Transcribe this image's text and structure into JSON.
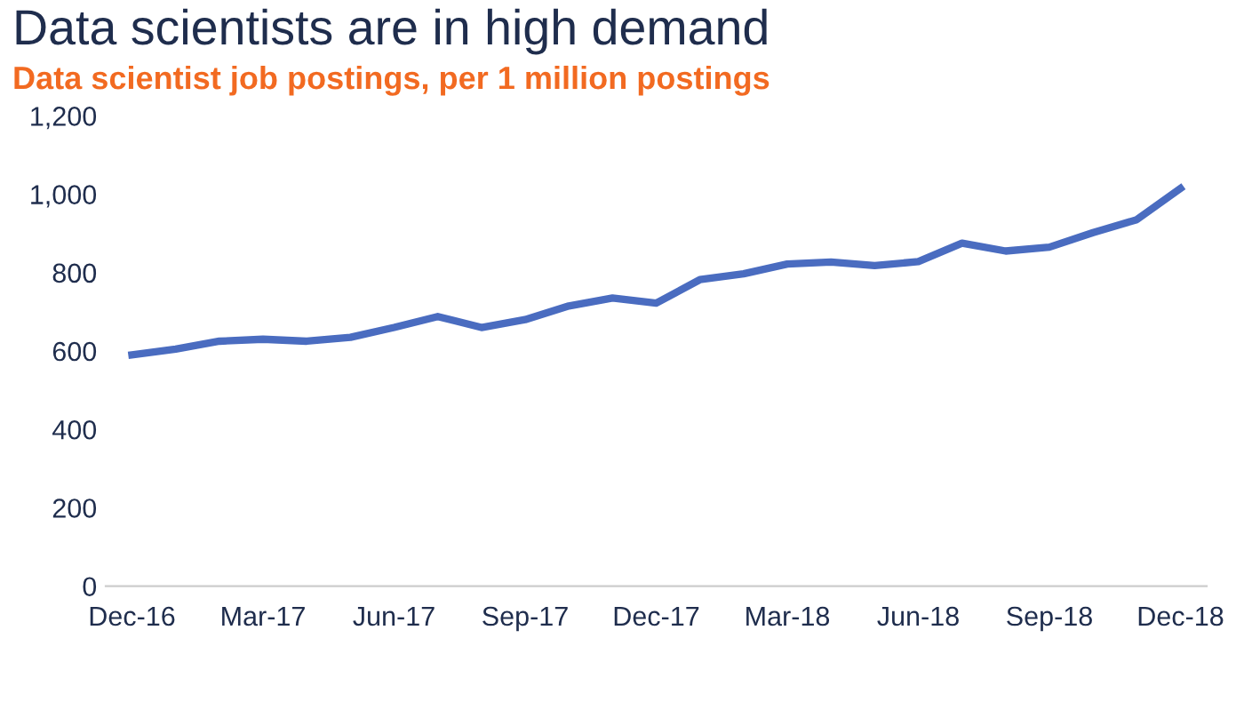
{
  "chart_data": {
    "type": "line",
    "title": "Data scientists are in high demand",
    "subtitle": "Data scientist job postings, per 1 million postings",
    "categories": [
      "Dec-16",
      null,
      null,
      "Mar-17",
      null,
      null,
      "Jun-17",
      null,
      null,
      "Sep-17",
      null,
      null,
      "Dec-17",
      null,
      null,
      "Mar-18",
      null,
      null,
      "Jun-18",
      null,
      null,
      "Sep-18",
      null,
      null,
      "Dec-18"
    ],
    "series": [
      {
        "color": "#4a6cc0",
        "values": [
          590,
          605,
          625,
          630,
          625,
          635,
          660,
          688,
          660,
          680,
          715,
          735,
          722,
          782,
          797,
          822,
          827,
          818,
          828,
          875,
          855,
          865,
          902,
          935,
          1015
        ]
      }
    ],
    "ylim": [
      0,
      1200
    ],
    "yticks": [
      {
        "value": 0,
        "label": "0"
      },
      {
        "value": 200,
        "label": "200"
      },
      {
        "value": 400,
        "label": "400"
      },
      {
        "value": 600,
        "label": "600"
      },
      {
        "value": 800,
        "label": "800"
      },
      {
        "value": 1000,
        "label": "1,000"
      },
      {
        "value": 1200,
        "label": "1,200"
      }
    ],
    "grid": false,
    "legend": false
  }
}
